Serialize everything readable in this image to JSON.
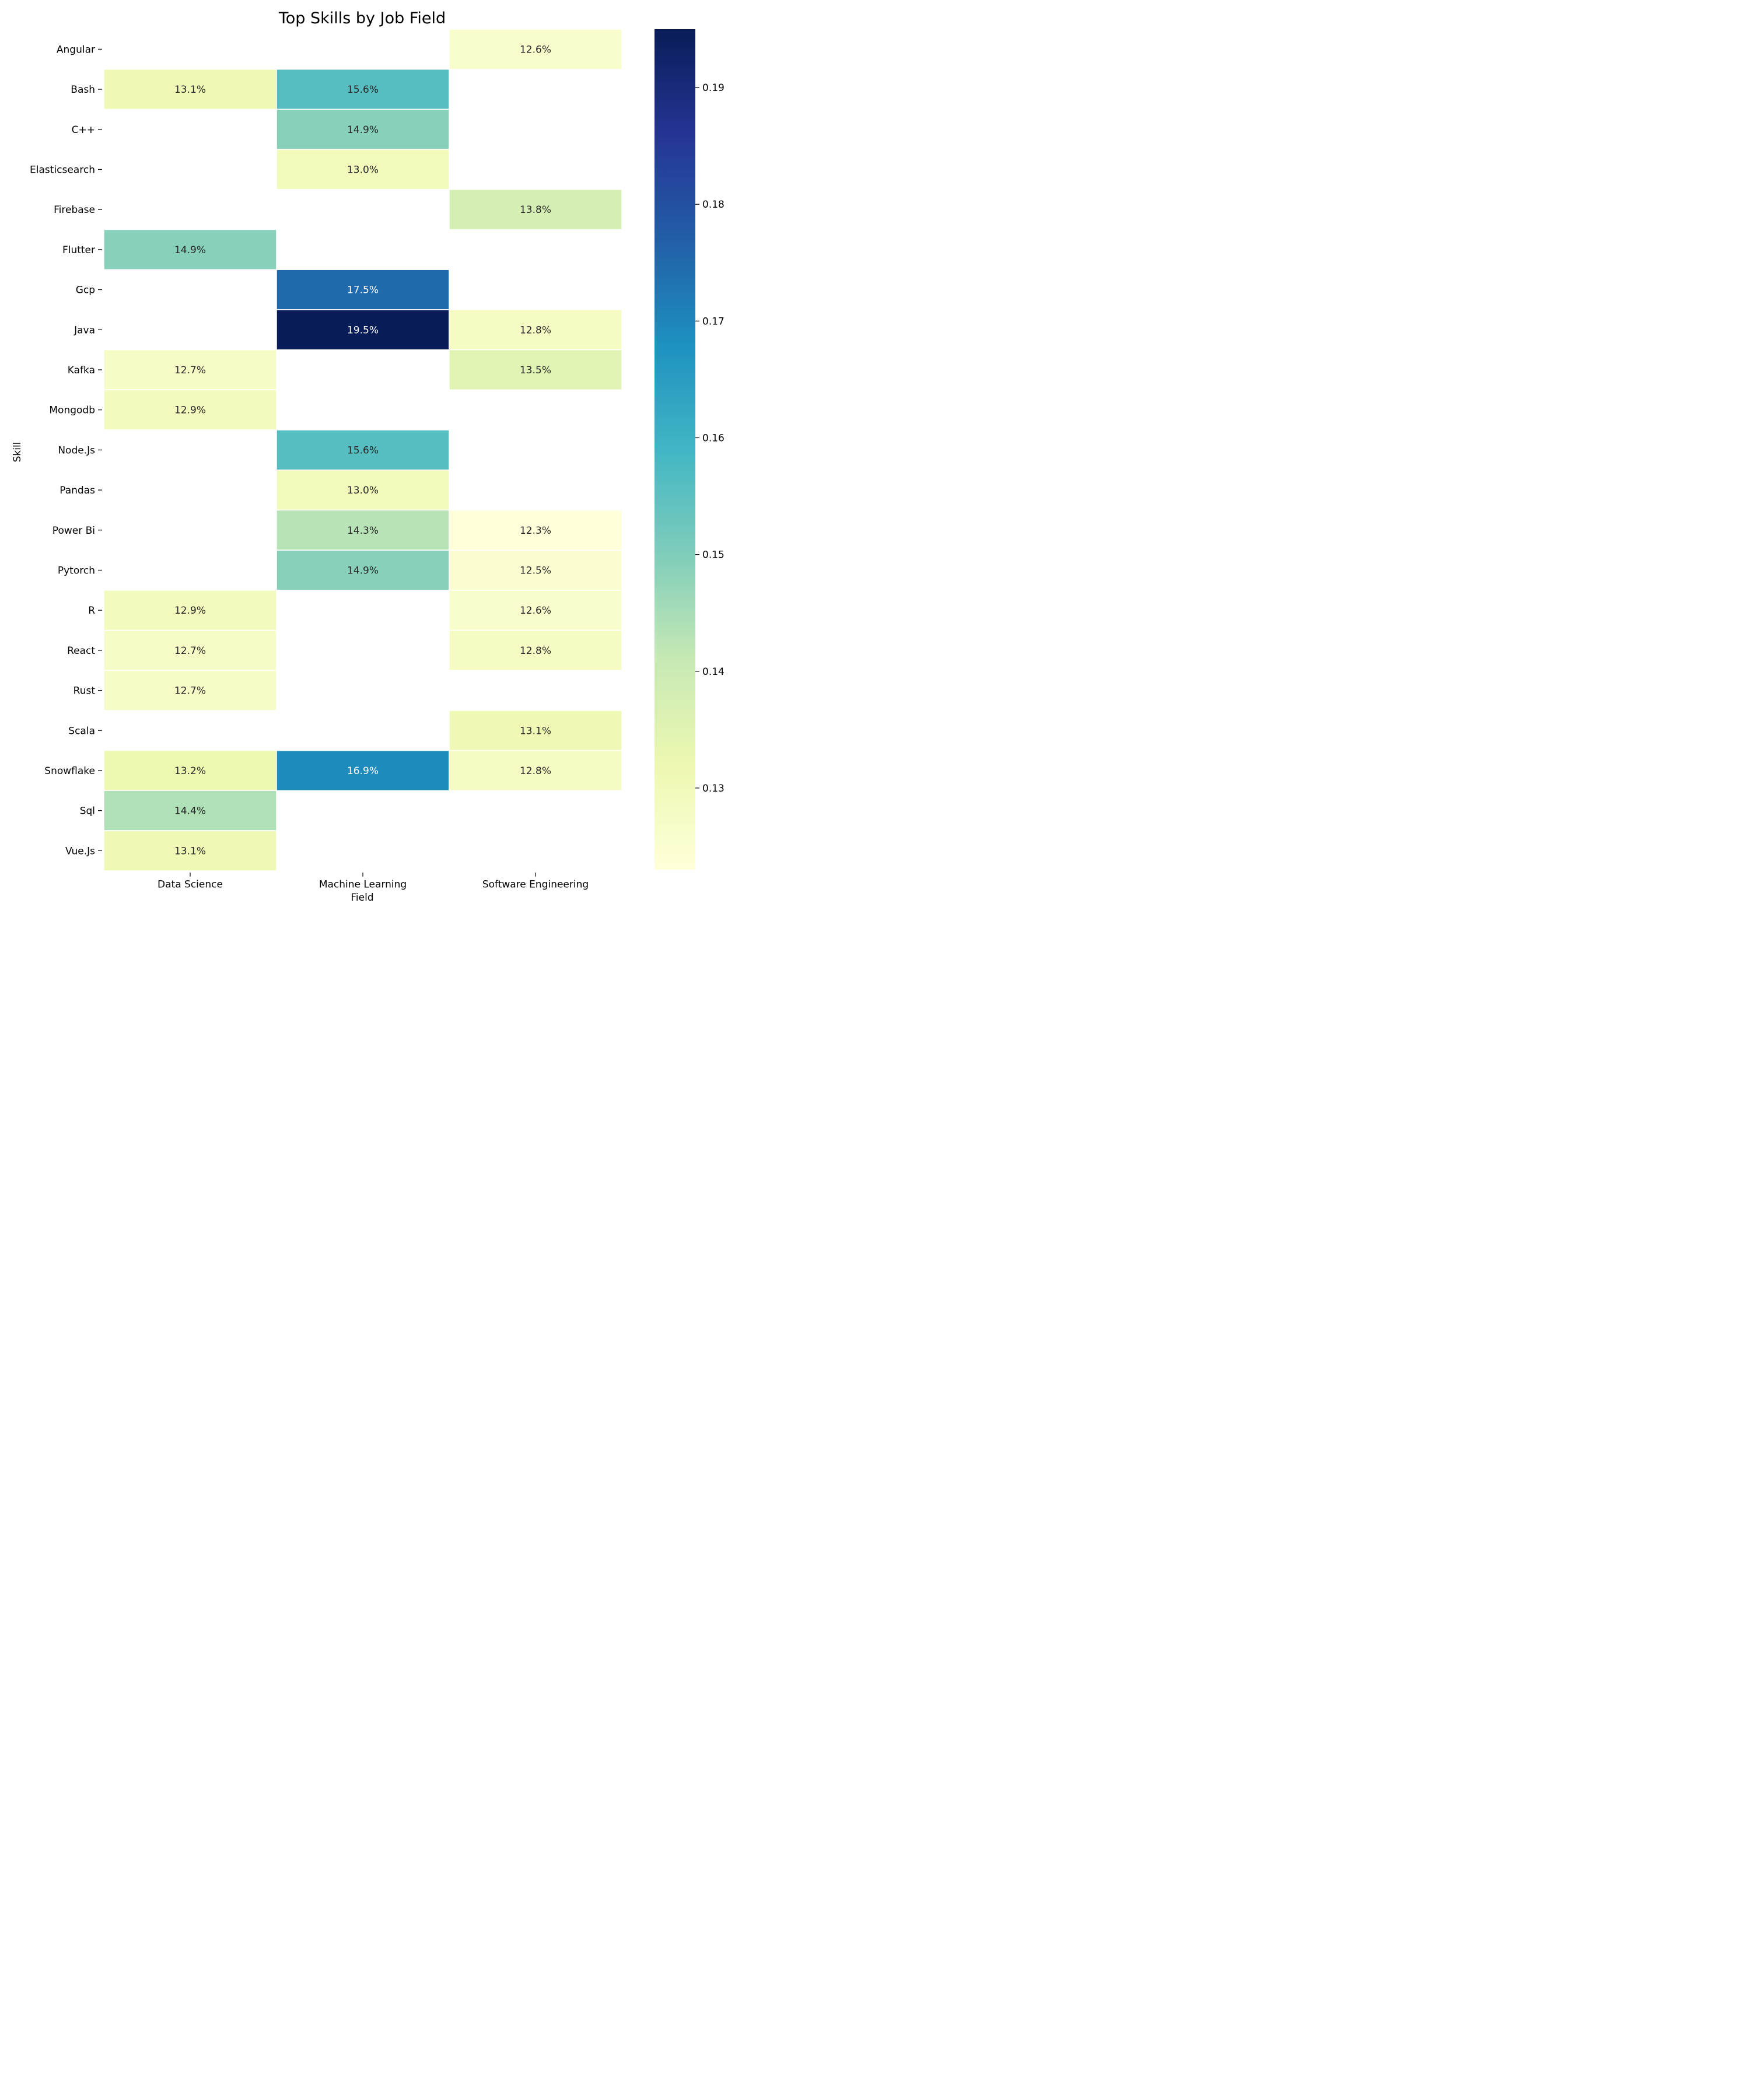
{
  "chart_data": {
    "type": "heatmap",
    "title": "Top Skills by Job Field",
    "xlabel": "Field",
    "ylabel": "Skill",
    "x_categories": [
      "Data Science",
      "Machine Learning",
      "Software Engineering"
    ],
    "y_categories": [
      "Angular",
      "Bash",
      "C++",
      "Elasticsearch",
      "Firebase",
      "Flutter",
      "Gcp",
      "Java",
      "Kafka",
      "Mongodb",
      "Node.Js",
      "Pandas",
      "Power Bi",
      "Pytorch",
      "R",
      "React",
      "Rust",
      "Scala",
      "Snowflake",
      "Sql",
      "Vue.Js"
    ],
    "values": [
      [
        null,
        null,
        0.126
      ],
      [
        0.131,
        0.156,
        null
      ],
      [
        null,
        0.149,
        null
      ],
      [
        null,
        0.13,
        null
      ],
      [
        null,
        null,
        0.138
      ],
      [
        0.149,
        null,
        null
      ],
      [
        null,
        0.175,
        null
      ],
      [
        null,
        0.195,
        0.128
      ],
      [
        0.127,
        null,
        0.135
      ],
      [
        0.129,
        null,
        null
      ],
      [
        null,
        0.156,
        null
      ],
      [
        null,
        0.13,
        null
      ],
      [
        null,
        0.143,
        0.123
      ],
      [
        null,
        0.149,
        0.125
      ],
      [
        0.129,
        null,
        0.126
      ],
      [
        0.127,
        null,
        0.128
      ],
      [
        0.127,
        null,
        null
      ],
      [
        null,
        null,
        0.131
      ],
      [
        0.132,
        0.169,
        0.128
      ],
      [
        0.144,
        null,
        null
      ],
      [
        0.131,
        null,
        null
      ]
    ],
    "cell_labels": [
      [
        null,
        null,
        "12.6%"
      ],
      [
        "13.1%",
        "15.6%",
        null
      ],
      [
        null,
        "14.9%",
        null
      ],
      [
        null,
        "13.0%",
        null
      ],
      [
        null,
        null,
        "13.8%"
      ],
      [
        "14.9%",
        null,
        null
      ],
      [
        null,
        "17.5%",
        null
      ],
      [
        null,
        "19.5%",
        "12.8%"
      ],
      [
        "12.7%",
        null,
        "13.5%"
      ],
      [
        "12.9%",
        null,
        null
      ],
      [
        null,
        "15.6%",
        null
      ],
      [
        null,
        "13.0%",
        null
      ],
      [
        null,
        "14.3%",
        "12.3%"
      ],
      [
        null,
        "14.9%",
        "12.5%"
      ],
      [
        "12.9%",
        null,
        "12.6%"
      ],
      [
        "12.7%",
        null,
        "12.8%"
      ],
      [
        "12.7%",
        null,
        null
      ],
      [
        null,
        null,
        "13.1%"
      ],
      [
        "13.2%",
        "16.9%",
        "12.8%"
      ],
      [
        "14.4%",
        null,
        null
      ],
      [
        "13.1%",
        null,
        null
      ]
    ],
    "colorbar": {
      "colormap": "YlGnBu",
      "range": [
        0.123,
        0.195
      ],
      "ticks": [
        0.13,
        0.14,
        0.15,
        0.16,
        0.17,
        0.18,
        0.19
      ],
      "tick_labels": [
        "0.13",
        "0.14",
        "0.15",
        "0.16",
        "0.17",
        "0.18",
        "0.19"
      ]
    },
    "colormap_stops": [
      "#ffffd9",
      "#edf8b1",
      "#c7e9b4",
      "#7fcdbb",
      "#41b6c4",
      "#1d91c0",
      "#225ea8",
      "#253494",
      "#081d58"
    ]
  }
}
